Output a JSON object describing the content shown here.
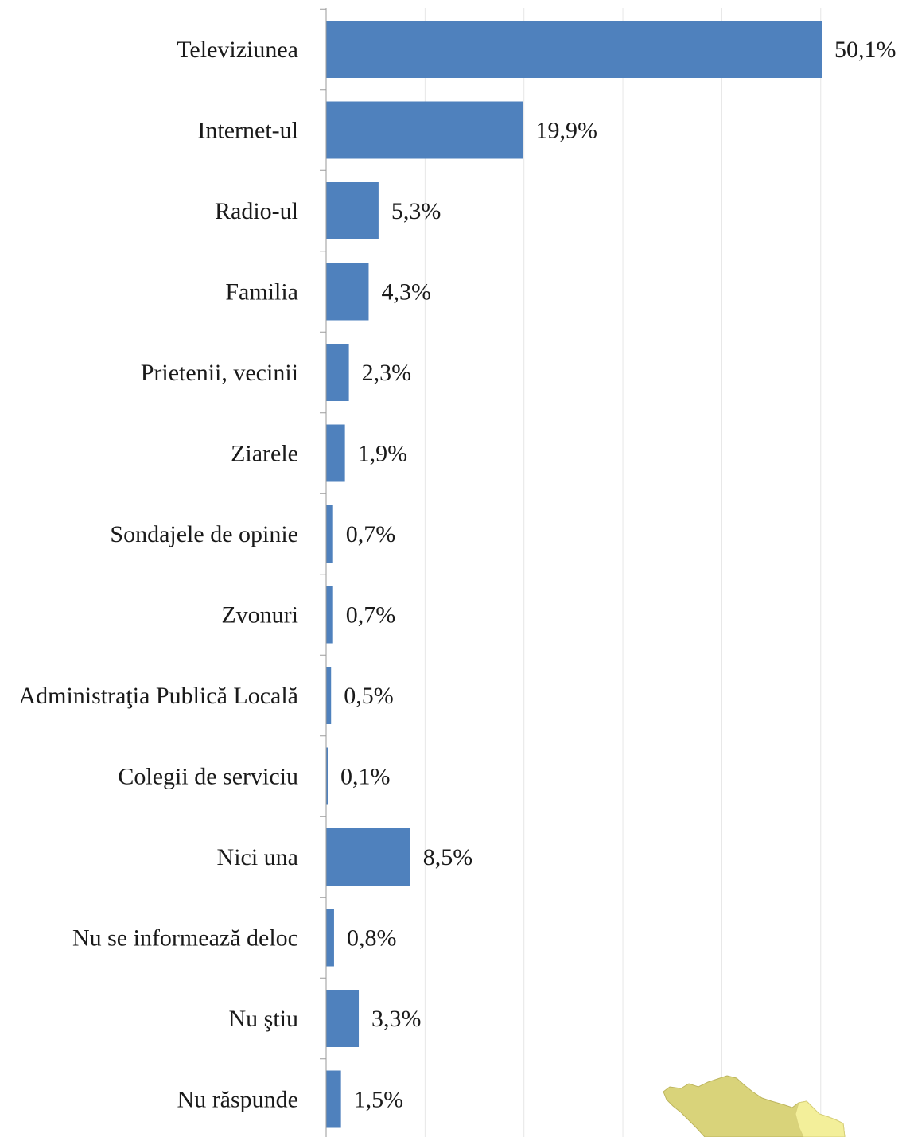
{
  "chart_data": {
    "type": "bar",
    "orientation": "horizontal",
    "categories": [
      "Televiziunea",
      "Internet-ul",
      "Radio-ul",
      "Familia",
      "Prietenii, vecinii",
      "Ziarele",
      "Sondajele de opinie",
      "Zvonuri",
      "Administraţia Publică Locală",
      "Colegii de serviciu",
      "Nici una",
      "Nu se informează deloc",
      "Nu ştiu",
      "Nu răspunde"
    ],
    "values": [
      50.1,
      19.9,
      5.3,
      4.3,
      2.3,
      1.9,
      0.7,
      0.7,
      0.5,
      0.1,
      8.5,
      0.8,
      3.3,
      1.5
    ],
    "value_labels": [
      "50,1%",
      "19,9%",
      "5,3%",
      "4,3%",
      "2,3%",
      "1,9%",
      "0,7%",
      "0,7%",
      "0,5%",
      "0,1%",
      "8,5%",
      "0,8%",
      "3,3%",
      "1,5%"
    ],
    "xlim": [
      0,
      60
    ],
    "grid": true,
    "bar_color": "#4f81bd",
    "grid_color": "#e6e6e6",
    "axis_color": "#9a9a9a",
    "map_fragment_colors": [
      "#d9d37a",
      "#f3ef9a"
    ]
  }
}
